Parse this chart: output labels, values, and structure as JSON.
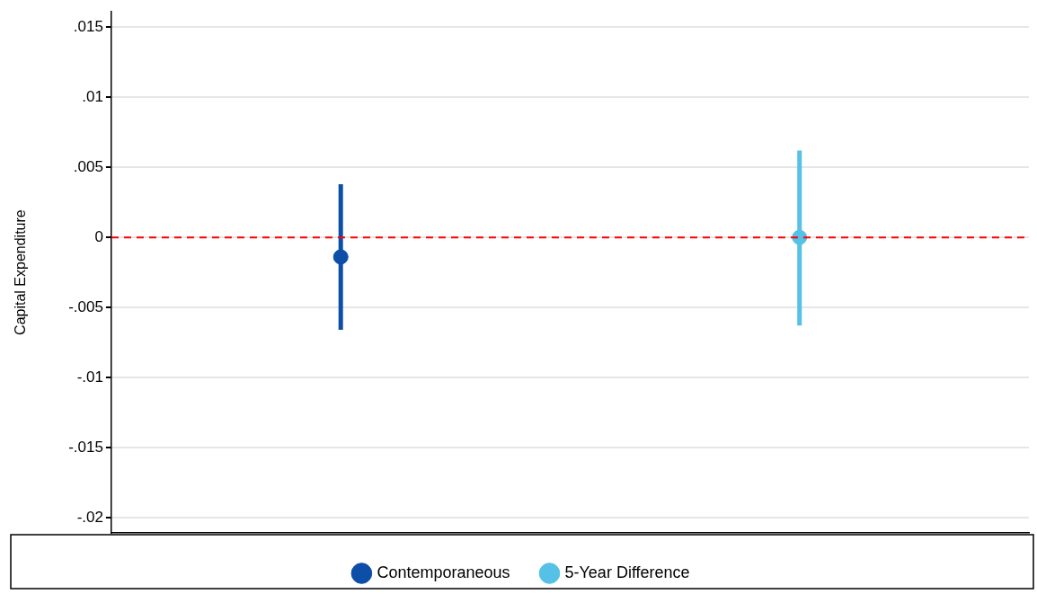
{
  "chart_data": {
    "type": "scatter",
    "ylabel": "Capital Expenditure",
    "categories": [
      null,
      null
    ],
    "series": [
      {
        "name": "Contemporaneous",
        "color": "#0c4ea8",
        "values": [
          -0.0014,
          null
        ],
        "errors": [
          [
            -0.0066,
            0.0038
          ],
          null
        ]
      },
      {
        "name": "5-Year Difference",
        "color": "#56c1e6",
        "values": [
          null,
          0
        ],
        "errors": [
          null,
          [
            -0.0063,
            0.0062
          ]
        ]
      }
    ],
    "ylim": [
      -0.0211,
      0.0161
    ],
    "yticks": [
      {
        "value": -0.02,
        "label": "-.02"
      },
      {
        "value": -0.015,
        "label": "-.015"
      },
      {
        "value": -0.01,
        "label": "-.01"
      },
      {
        "value": -0.005,
        "label": "-.005"
      },
      0,
      {
        "value": 0.005,
        "label": ".005"
      },
      {
        "value": 0.01,
        "label": ".01"
      },
      {
        "value": 0.015,
        "label": ".015"
      }
    ],
    "ref_lines": [
      {
        "axis": "y",
        "value": 0,
        "color": "#ff0000",
        "line_style": "dashed"
      }
    ],
    "grid": "y",
    "legend": "bottom",
    "marker": "circle",
    "tick_labels": "y"
  }
}
